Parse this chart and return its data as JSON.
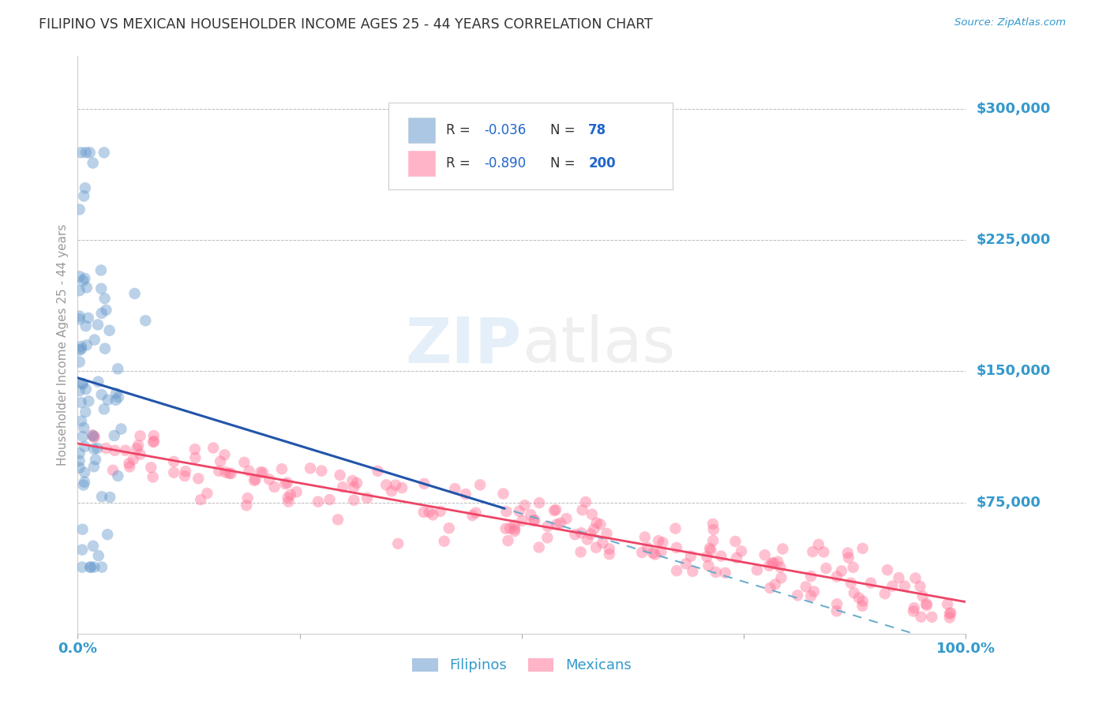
{
  "title": "FILIPINO VS MEXICAN HOUSEHOLDER INCOME AGES 25 - 44 YEARS CORRELATION CHART",
  "source": "Source: ZipAtlas.com",
  "ylabel": "Householder Income Ages 25 - 44 years",
  "ytick_labels": [
    "$75,000",
    "$150,000",
    "$225,000",
    "$300,000"
  ],
  "ytick_values": [
    75000,
    150000,
    225000,
    300000
  ],
  "ymin": 0,
  "ymax": 330000,
  "xmin": 0.0,
  "xmax": 1.0,
  "filipino_R": -0.036,
  "filipino_N": 78,
  "mexican_R": -0.89,
  "mexican_N": 200,
  "filipino_color": "#6699CC",
  "mexican_color": "#FF7799",
  "legend_label_filipino": "Filipinos",
  "legend_label_mexican": "Mexicans",
  "background_color": "#FFFFFF",
  "grid_color": "#BBBBBB",
  "axis_label_color": "#3399CC",
  "title_color": "#333333",
  "fil_line_color": "#2255AA",
  "fil_dash_color": "#66AACC",
  "mex_line_color": "#EE4466"
}
